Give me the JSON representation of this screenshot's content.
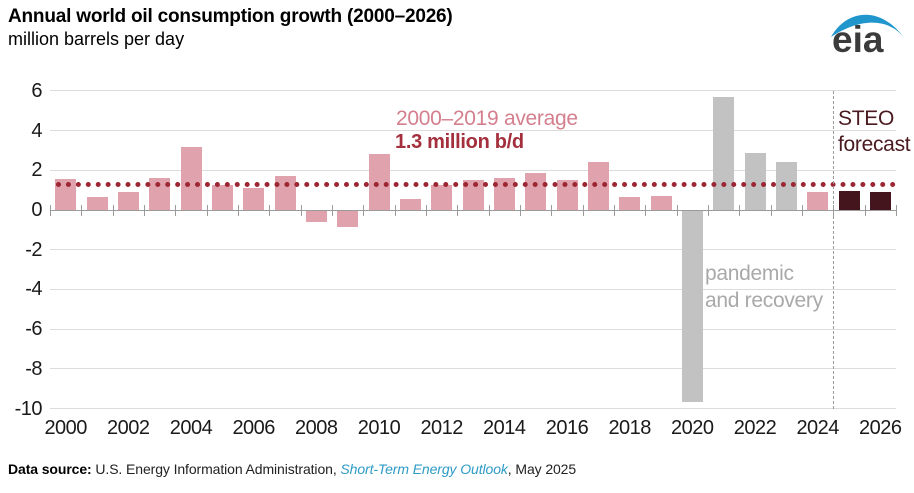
{
  "header": {
    "title": "Annual world oil consumption growth (2000–2026)",
    "subtitle": "million barrels per day"
  },
  "logo": {
    "text": "eia",
    "text_color": "#3b3b3b",
    "swoosh_color": "#2196cc"
  },
  "chart_data": {
    "type": "bar",
    "title": "Annual world oil consumption growth (2000–2026)",
    "ylabel": "million barrels per day",
    "ylim": [
      -10,
      6
    ],
    "grid": true,
    "years": [
      2000,
      2001,
      2002,
      2003,
      2004,
      2005,
      2006,
      2007,
      2008,
      2009,
      2010,
      2011,
      2012,
      2013,
      2014,
      2015,
      2016,
      2017,
      2018,
      2019,
      2020,
      2021,
      2022,
      2023,
      2024,
      2025,
      2026
    ],
    "values": [
      1.55,
      0.65,
      0.9,
      1.6,
      3.2,
      1.25,
      1.1,
      1.7,
      -0.55,
      -0.8,
      2.8,
      0.55,
      1.25,
      1.5,
      1.6,
      1.85,
      1.5,
      2.4,
      0.65,
      0.7,
      -9.6,
      5.7,
      2.85,
      2.4,
      0.9,
      0.95,
      0.9
    ],
    "color_keys": [
      "historical",
      "historical",
      "historical",
      "historical",
      "historical",
      "historical",
      "historical",
      "historical",
      "historical",
      "historical",
      "historical",
      "historical",
      "historical",
      "historical",
      "historical",
      "historical",
      "historical",
      "historical",
      "historical",
      "historical",
      "pandemic",
      "pandemic",
      "pandemic",
      "pandemic",
      "historical",
      "forecast",
      "forecast"
    ],
    "bar_colors": {
      "historical": "#e0a2ac",
      "pandemic": "#c2c2c2",
      "forecast": "#45151e"
    },
    "yticks": [
      6,
      4,
      2,
      0,
      -2,
      -4,
      -6,
      -8,
      -10
    ],
    "xtick_labels": [
      "2000",
      "2002",
      "2004",
      "2006",
      "2008",
      "2010",
      "2012",
      "2014",
      "2016",
      "2018",
      "2020",
      "2022",
      "2024",
      "2026"
    ],
    "average_line": {
      "value": 1.3,
      "color": "#9c2733",
      "label_line1": "2000–2019 average",
      "label_line2": "1.3 million b/d"
    },
    "forecast_divider_after_year": 2024,
    "annotations": {
      "pandemic_line1": "pandemic",
      "pandemic_line2": "and recovery",
      "forecast_line1": "STEO",
      "forecast_line2": "forecast"
    }
  },
  "footer": {
    "prefix_bold": "Data source:",
    "middle_text": " U.S. Energy Information Administration, ",
    "link_text": "Short-Term Energy Outlook",
    "suffix_text": ", May 2025"
  }
}
